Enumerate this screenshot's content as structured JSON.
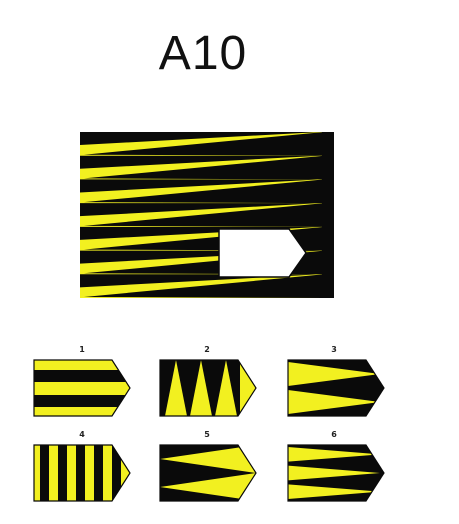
{
  "title": "A10",
  "colors": {
    "yellow": "#f2f020",
    "black": "#0a0a0a",
    "white": "#ffffff"
  },
  "options": [
    {
      "label": "1",
      "pattern": "horizontal-stripes"
    },
    {
      "label": "2",
      "pattern": "vertical-triangles"
    },
    {
      "label": "3",
      "pattern": "horizontal-wedges-left"
    },
    {
      "label": "4",
      "pattern": "vertical-stripes"
    },
    {
      "label": "5",
      "pattern": "horizontal-wedges-right"
    },
    {
      "label": "6",
      "pattern": "correct-wedges"
    }
  ]
}
